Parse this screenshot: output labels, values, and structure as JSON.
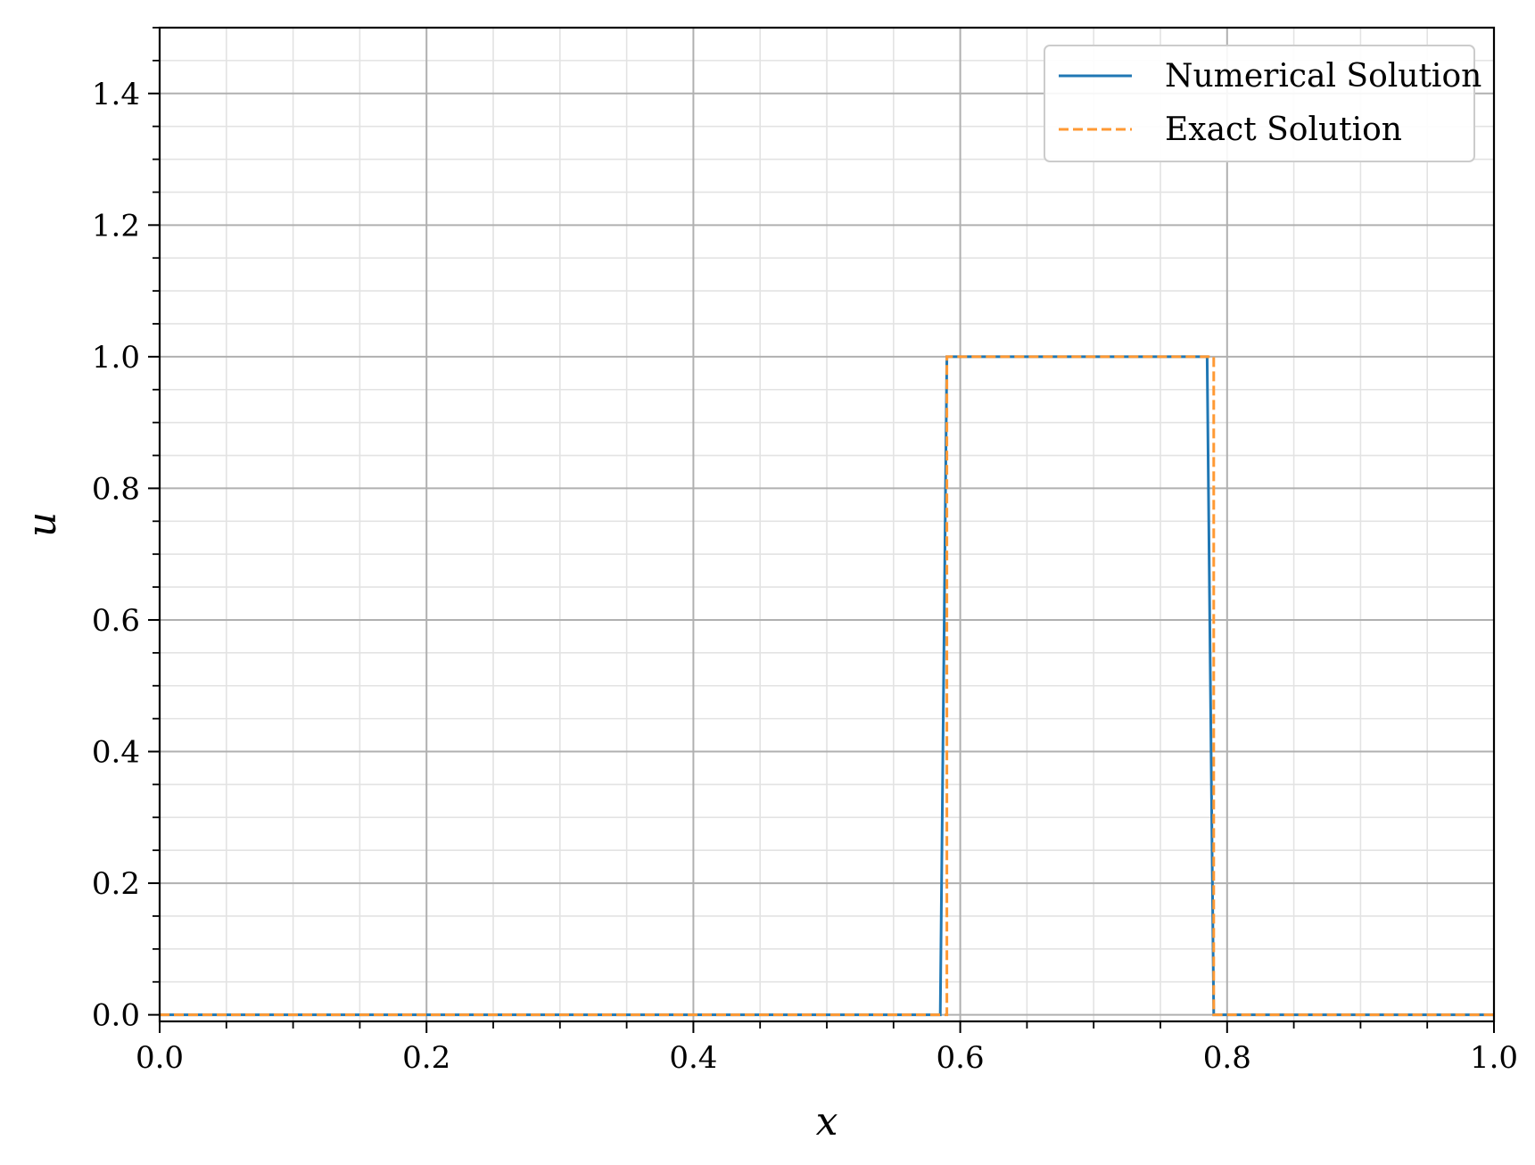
{
  "chart_data": {
    "type": "line",
    "xlabel": "x",
    "ylabel": "u",
    "xlim": [
      0.0,
      1.0
    ],
    "ylim": [
      -0.01,
      1.5
    ],
    "x_ticks": [
      "0.0",
      "0.2",
      "0.4",
      "0.6",
      "0.8",
      "1.0"
    ],
    "y_ticks": [
      "0.0",
      "0.2",
      "0.4",
      "0.6",
      "0.8",
      "1.0",
      "1.2",
      "1.4"
    ],
    "grid": true,
    "minor_grid": true,
    "legend_position": "top-right",
    "series": [
      {
        "name": "Numerical Solution",
        "color": "#1f77b4",
        "style": "solid",
        "x": [
          0.0,
          0.585,
          0.59,
          0.785,
          0.79,
          1.0
        ],
        "y": [
          0.0,
          0.0,
          1.0,
          1.0,
          0.0,
          0.0
        ]
      },
      {
        "name": "Exact Solution",
        "color": "#ff9933",
        "style": "dashed",
        "x": [
          0.0,
          0.59,
          0.59,
          0.79,
          0.79,
          1.0
        ],
        "y": [
          0.0,
          0.0,
          1.0,
          1.0,
          0.0,
          0.0
        ]
      }
    ]
  }
}
